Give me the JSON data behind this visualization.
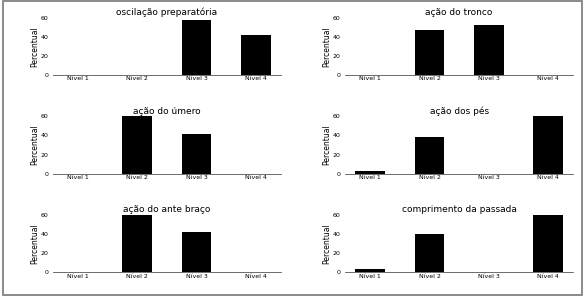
{
  "subplots": [
    {
      "title": "oscilação preparatória",
      "values": [
        0,
        0,
        58,
        42
      ]
    },
    {
      "title": "ação do tronco",
      "values": [
        0,
        47,
        52,
        0
      ]
    },
    {
      "title": "ação do úmero",
      "values": [
        0,
        60,
        42,
        0
      ]
    },
    {
      "title": "ação dos pés",
      "values": [
        3,
        38,
        0,
        60
      ]
    },
    {
      "title": "ação do ante braço",
      "values": [
        0,
        60,
        42,
        0
      ]
    },
    {
      "title": "comprimento da passada",
      "values": [
        3,
        40,
        0,
        60
      ]
    }
  ],
  "categories": [
    "Nível 1",
    "Nível 2",
    "Nível 3",
    "Nível 4"
  ],
  "ylabel": "Percentual",
  "ylim": [
    0,
    60
  ],
  "yticks": [
    0,
    20,
    40,
    60
  ],
  "bar_color": "#000000",
  "bar_width": 0.5,
  "title_fontsize": 6.5,
  "tick_fontsize": 4.5,
  "ylabel_fontsize": 5.5,
  "background_color": "#ffffff",
  "fig_background": "#ffffff",
  "border_color": "#aaaaaa"
}
